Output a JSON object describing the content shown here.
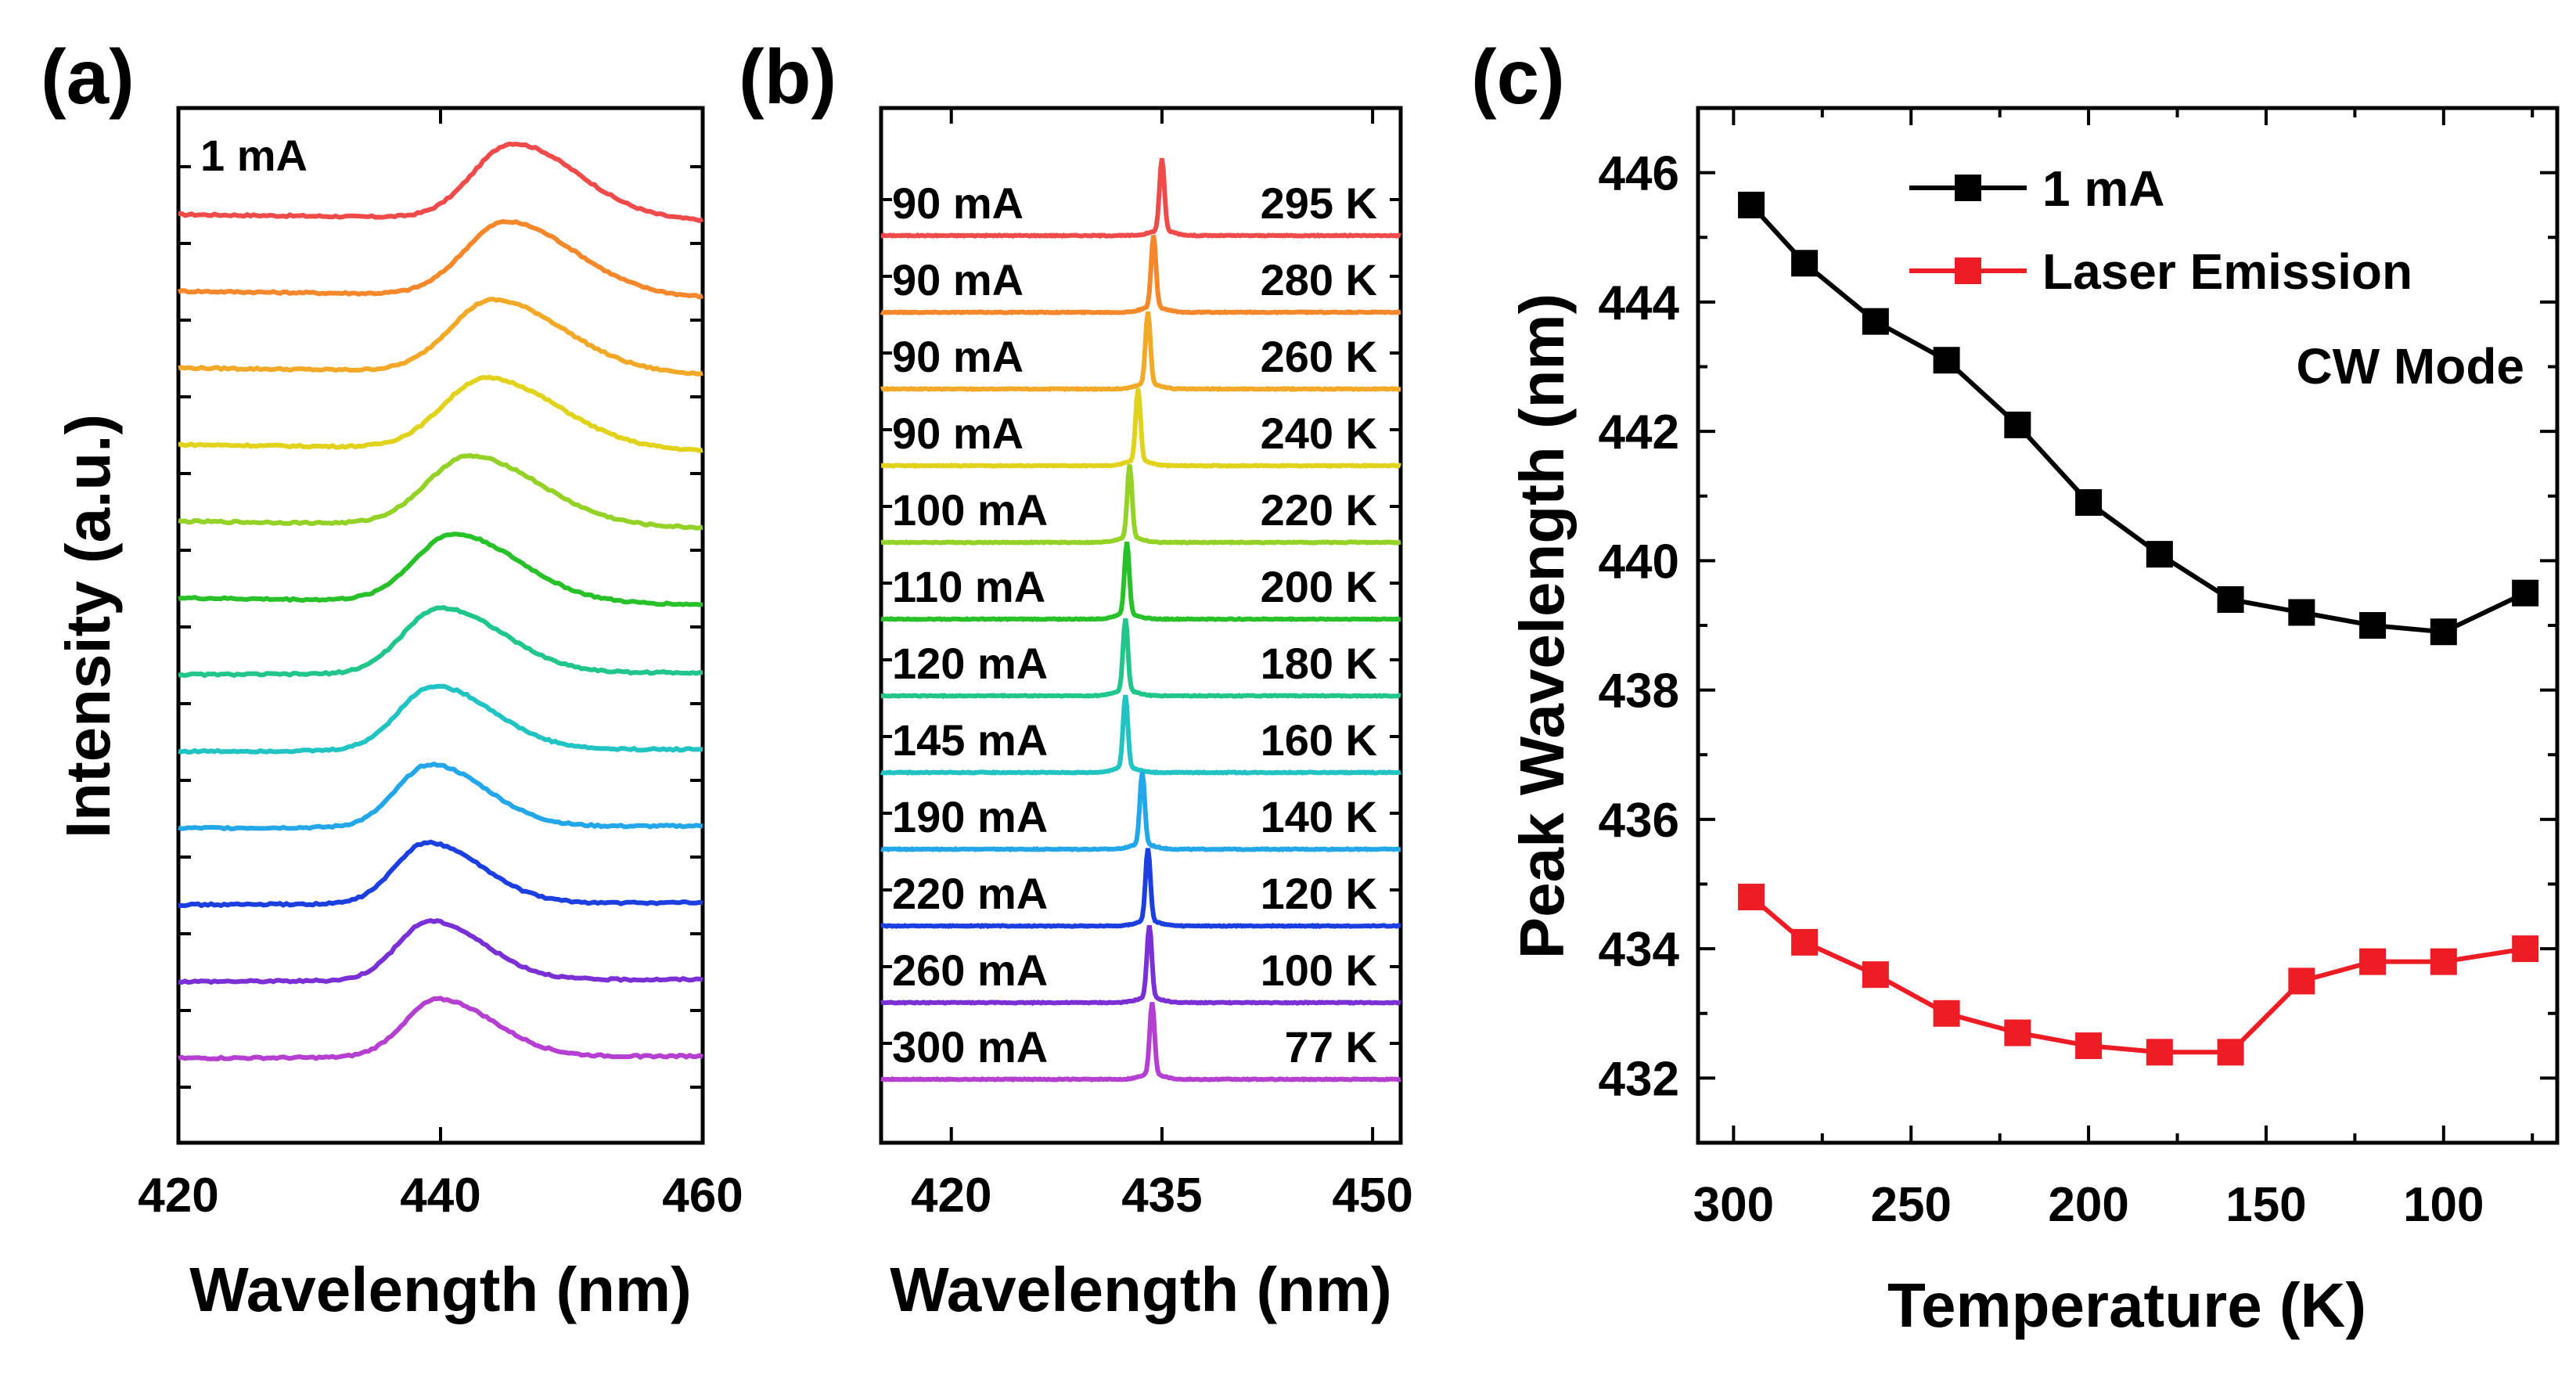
{
  "chart_data": [
    {
      "panel": "(a)",
      "type": "line",
      "title": "",
      "xlabel": "Wavelength (nm)",
      "ylabel": "Intensity (a.u.)",
      "xlim": [
        420,
        460
      ],
      "xticks": [
        "420",
        "440",
        "460"
      ],
      "annotation": "1 mA",
      "series": [
        {
          "name": "295 K",
          "color": "#f04b4b",
          "peak": 445.5,
          "width": 4.0
        },
        {
          "name": "280 K",
          "color": "#f5882a",
          "peak": 445.0,
          "width": 4.2
        },
        {
          "name": "260 K",
          "color": "#f3a928",
          "peak": 444.0,
          "width": 4.3
        },
        {
          "name": "240 K",
          "color": "#e1d21b",
          "peak": 443.5,
          "width": 4.4
        },
        {
          "name": "220 K",
          "color": "#95d228",
          "peak": 442.2,
          "width": 4.3
        },
        {
          "name": "200 K",
          "color": "#29c12a",
          "peak": 441.0,
          "width": 4.0
        },
        {
          "name": "180 K",
          "color": "#20c68a",
          "peak": 440.0,
          "width": 3.8
        },
        {
          "name": "160 K",
          "color": "#22c3c3",
          "peak": 439.5,
          "width": 3.6
        },
        {
          "name": "140 K",
          "color": "#24a7e8",
          "peak": 439.2,
          "width": 3.4
        },
        {
          "name": "120 K",
          "color": "#1c3fe0",
          "peak": 439.0,
          "width": 3.3
        },
        {
          "name": "100 K",
          "color": "#7a30d4",
          "peak": 439.2,
          "width": 3.3
        },
        {
          "name": "77 K",
          "color": "#b43fd0",
          "peak": 439.8,
          "width": 3.4
        }
      ]
    },
    {
      "panel": "(b)",
      "type": "line",
      "title": "",
      "xlabel": "Wavelength (nm)",
      "ylabel": "",
      "xlim": [
        415,
        452
      ],
      "xticks": [
        "420",
        "435",
        "450"
      ],
      "series": [
        {
          "current": "90 mA",
          "temperature": "295 K",
          "color": "#f04b4b",
          "peak": 435.0
        },
        {
          "current": "90 mA",
          "temperature": "280 K",
          "color": "#f5882a",
          "peak": 434.4
        },
        {
          "current": "90 mA",
          "temperature": "260 K",
          "color": "#f3a928",
          "peak": 434.0
        },
        {
          "current": "90 mA",
          "temperature": "240 K",
          "color": "#e1d21b",
          "peak": 433.3
        },
        {
          "current": "100 mA",
          "temperature": "220 K",
          "color": "#95d228",
          "peak": 432.7
        },
        {
          "current": "110 mA",
          "temperature": "200 K",
          "color": "#29c12a",
          "peak": 432.5
        },
        {
          "current": "120 mA",
          "temperature": "180 K",
          "color": "#20c68a",
          "peak": 432.4
        },
        {
          "current": "145 mA",
          "temperature": "160 K",
          "color": "#22c3c3",
          "peak": 432.4
        },
        {
          "current": "190 mA",
          "temperature": "140 K",
          "color": "#24a7e8",
          "peak": 433.6
        },
        {
          "current": "220 mA",
          "temperature": "120 K",
          "color": "#1c3fe0",
          "peak": 434.0
        },
        {
          "current": "260 mA",
          "temperature": "100 K",
          "color": "#7a30d4",
          "peak": 434.1
        },
        {
          "current": "300 mA",
          "temperature": "77 K",
          "color": "#b43fd0",
          "peak": 434.3
        }
      ]
    },
    {
      "panel": "(c)",
      "type": "line",
      "title": "",
      "xlabel": "Temperature (K)",
      "ylabel": "Peak Wavelength (nm)",
      "xlim": [
        310,
        68
      ],
      "ylim": [
        431,
        447
      ],
      "xticks": [
        "300",
        "250",
        "200",
        "150",
        "100"
      ],
      "yticks": [
        "432",
        "434",
        "436",
        "438",
        "440",
        "442",
        "444",
        "446"
      ],
      "annotation": "CW Mode",
      "legend_position": "top-right",
      "x": [
        295,
        280,
        260,
        240,
        220,
        200,
        180,
        160,
        140,
        120,
        100,
        77
      ],
      "series": [
        {
          "name": "1 mA",
          "color": "#000000",
          "values": [
            445.5,
            444.6,
            443.7,
            443.1,
            442.1,
            440.9,
            440.1,
            439.4,
            439.2,
            439.0,
            438.9,
            439.5
          ]
        },
        {
          "name": "Laser Emission",
          "color": "#ee1c25",
          "values": [
            434.8,
            434.1,
            433.6,
            433.0,
            432.7,
            432.5,
            432.4,
            432.4,
            433.5,
            433.8,
            433.8,
            434.0
          ]
        }
      ]
    }
  ]
}
